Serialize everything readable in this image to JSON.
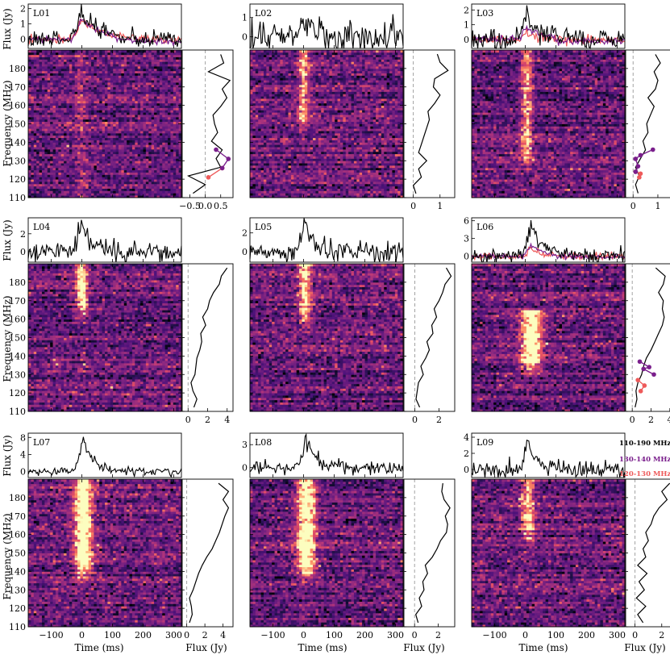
{
  "figure": {
    "y_label_flux": "Flux (Jy)",
    "y_label_freq": "Frequency (MHz)",
    "x_label_time": "Time (ms)",
    "x_label_spec": "Flux (Jy)"
  },
  "legend": [
    {
      "label": "110-190 MHz",
      "color": "#000000"
    },
    {
      "label": "130-140 MHz",
      "color": "#7a1f8c"
    },
    {
      "label": "120-130 MHz",
      "color": "#ee5a5a"
    }
  ],
  "colors": {
    "band_a": "#7a1f8c",
    "band_b": "#ee5a5a",
    "full": "#000000"
  },
  "chart_data": [
    {
      "label": "L01",
      "type": "line",
      "flux_ticks": [
        0,
        1,
        2
      ],
      "flux_ylim": [
        -0.6,
        2.3
      ],
      "spec_xticks": [
        -0.5,
        0.0,
        0.5
      ],
      "spec_xticklabels": [
        "−0.5",
        "0.0",
        "0.5"
      ],
      "spec_xlim": [
        -0.75,
        0.9
      ],
      "spec_values": [
        -0.4,
        0.0,
        -0.55,
        0.5,
        0.35,
        0.55,
        0.2,
        0.4,
        0.3,
        0.25,
        0.5,
        0.7,
        0.55,
        0.8,
        0.1,
        0.6,
        0.5
      ],
      "spec_a": [
        [
          0.35,
          136
        ],
        [
          0.75,
          131
        ],
        [
          0.55,
          126
        ]
      ],
      "spec_b": [
        [
          0.55,
          126
        ],
        [
          0.1,
          121
        ]
      ],
      "burst_strength": 0.18,
      "burst_center": 0,
      "burst_width": 20,
      "burst_fmin": 110,
      "burst_fmax": 190,
      "peak": 1.8,
      "noise": 0.28,
      "decay": 60,
      "series_a_scale": 0.75,
      "series_b_scale": 0.7,
      "has_bands": true,
      "seed": 11
    },
    {
      "label": "L02",
      "type": "line",
      "flux_ticks": [
        0,
        1
      ],
      "flux_ylim": [
        -0.6,
        1.7
      ],
      "spec_xticks": [
        0,
        1
      ],
      "spec_xticklabels": [
        "0",
        "1"
      ],
      "spec_xlim": [
        -0.35,
        1.55
      ],
      "spec_values": [
        0.1,
        0.0,
        0.3,
        0.2,
        0.5,
        0.2,
        0.3,
        0.4,
        0.5,
        0.6,
        0.55,
        0.8,
        1.0,
        0.75,
        0.8,
        1.3,
        1.0,
        0.9
      ],
      "burst_strength": 0.5,
      "burst_center": 0,
      "burst_width": 18,
      "burst_fmin": 150,
      "burst_fmax": 190,
      "peak": 0.8,
      "noise": 0.35,
      "decay": 40,
      "has_bands": false,
      "seed": 22
    },
    {
      "label": "L03",
      "type": "line",
      "flux_ticks": [
        0,
        1,
        2
      ],
      "flux_ylim": [
        -0.6,
        2.4
      ],
      "spec_xticks": [
        0,
        1
      ],
      "spec_xticklabels": [
        "0",
        "1"
      ],
      "spec_xlim": [
        -0.3,
        1.75
      ],
      "spec_values": [
        0.2,
        0.1,
        0.25,
        0.1,
        0.3,
        0.5,
        0.4,
        0.6,
        0.55,
        0.7,
        0.85,
        0.6,
        0.9,
        1.0,
        0.85,
        1.1,
        0.9
      ],
      "spec_a": [
        [
          0.8,
          136
        ],
        [
          0.3,
          133
        ],
        [
          0.1,
          131
        ],
        [
          0.2,
          127
        ],
        [
          0.1,
          124
        ]
      ],
      "spec_b": [
        [
          0.1,
          124
        ],
        [
          0.3,
          123
        ],
        [
          0.25,
          121
        ]
      ],
      "burst_strength": 0.55,
      "burst_center": 5,
      "burst_width": 18,
      "burst_fmin": 130,
      "burst_fmax": 190,
      "peak": 1.4,
      "noise": 0.35,
      "decay": 50,
      "series_a_scale": 0.6,
      "series_b_scale": 0.35,
      "has_bands": true,
      "seed": 33
    },
    {
      "label": "L04",
      "type": "line",
      "flux_ticks": [
        0,
        2
      ],
      "flux_ylim": [
        -1.2,
        3.8
      ],
      "spec_xticks": [
        0,
        2,
        4
      ],
      "spec_xticklabels": [
        "0",
        "2",
        "4"
      ],
      "spec_xlim": [
        -0.6,
        4.6
      ],
      "spec_values": [
        0.6,
        0.9,
        0.5,
        0.3,
        0.7,
        0.8,
        0.9,
        1.2,
        1.4,
        1.3,
        1.8,
        1.5,
        2.0,
        2.2,
        2.6,
        3.2,
        3.4,
        4.0
      ],
      "burst_strength": 0.75,
      "burst_center": 0,
      "burst_width": 18,
      "burst_fmin": 165,
      "burst_fmax": 190,
      "peak": 3.0,
      "noise": 0.55,
      "decay": 30,
      "has_bands": false,
      "seed": 44
    },
    {
      "label": "L05",
      "type": "line",
      "flux_ticks": [
        0,
        2
      ],
      "flux_ylim": [
        -1.1,
        3.6
      ],
      "spec_xticks": [
        0,
        2
      ],
      "spec_xticklabels": [
        "0",
        "2"
      ],
      "spec_xlim": [
        -0.9,
        3.3
      ],
      "spec_values": [
        0.4,
        0.1,
        0.2,
        0.3,
        0.7,
        0.5,
        0.9,
        1.2,
        1.0,
        1.5,
        1.4,
        1.8,
        1.6,
        2.0,
        2.3,
        2.5,
        3.0,
        2.6
      ],
      "burst_strength": 0.6,
      "burst_center": 5,
      "burst_width": 20,
      "burst_fmin": 160,
      "burst_fmax": 190,
      "peak": 2.8,
      "noise": 0.55,
      "decay": 30,
      "has_bands": false,
      "seed": 55
    },
    {
      "label": "L06",
      "type": "line",
      "flux_ticks": [
        0,
        3,
        6
      ],
      "flux_ylim": [
        -1.0,
        6.5
      ],
      "spec_xticks": [
        0,
        2,
        4
      ],
      "spec_xticklabels": [
        "0",
        "2",
        "4"
      ],
      "spec_xlim": [
        -0.7,
        4.7
      ],
      "spec_values": [
        0.3,
        0.5,
        0.4,
        0.6,
        1.0,
        1.2,
        1.5,
        2.0,
        2.4,
        2.8,
        3.2,
        3.4,
        3.2,
        3.3,
        2.8,
        3.3,
        3.5,
        2.5
      ],
      "spec_a": [
        [
          0.8,
          137
        ],
        [
          1.8,
          134
        ],
        [
          1.2,
          133
        ],
        [
          2.3,
          130
        ]
      ],
      "spec_b": [
        [
          0.6,
          127
        ],
        [
          1.3,
          124
        ],
        [
          0.9,
          121
        ]
      ],
      "burst_strength": 0.85,
      "burst_center": 20,
      "burst_width": 35,
      "burst_fmin": 135,
      "burst_fmax": 165,
      "peak": 4.8,
      "noise": 0.6,
      "decay": 40,
      "series_a_scale": 0.4,
      "series_b_scale": 0.25,
      "has_bands": true,
      "seed": 66
    },
    {
      "label": "L07",
      "type": "line",
      "flux_ticks": [
        0,
        4,
        8
      ],
      "flux_ylim": [
        -1.4,
        9.0
      ],
      "spec_xticks": [
        0,
        2,
        4
      ],
      "spec_xticklabels": [
        "0",
        "2",
        "4"
      ],
      "spec_xlim": [
        -0.5,
        5.1
      ],
      "spec_values": [
        0.3,
        0.6,
        0.5,
        0.3,
        0.7,
        1.0,
        1.3,
        1.7,
        2.2,
        2.8,
        3.2,
        3.6,
        3.9,
        4.2,
        4.6,
        4.0,
        4.6,
        3.5
      ],
      "burst_strength": 0.9,
      "burst_center": 5,
      "burst_width": 28,
      "burst_fmin": 140,
      "burst_fmax": 190,
      "peak": 7.0,
      "noise": 0.55,
      "decay": 35,
      "has_bands": false,
      "seed": 77
    },
    {
      "label": "L08",
      "type": "line",
      "flux_ticks": [
        0,
        3
      ],
      "flux_ylim": [
        -1.3,
        4.5
      ],
      "spec_xticks": [
        0,
        2
      ],
      "spec_xticklabels": [
        "0",
        "2"
      ],
      "spec_xlim": [
        -0.9,
        3.4
      ],
      "spec_values": [
        0.3,
        0.1,
        0.6,
        0.4,
        0.8,
        0.7,
        1.1,
        0.9,
        1.5,
        1.9,
        2.2,
        2.7,
        2.8,
        2.6,
        3.0,
        2.5,
        2.3,
        2.4
      ],
      "burst_strength": 0.85,
      "burst_center": 10,
      "burst_width": 30,
      "burst_fmin": 140,
      "burst_fmax": 190,
      "peak": 3.6,
      "noise": 0.5,
      "decay": 35,
      "has_bands": false,
      "seed": 88
    },
    {
      "label": "L09",
      "type": "line",
      "flux_ticks": [
        0,
        2,
        4
      ],
      "flux_ylim": [
        -1.0,
        4.5
      ],
      "spec_xticks": [
        0,
        2
      ],
      "spec_xticklabels": [
        "0",
        "2"
      ],
      "spec_xlim": [
        -0.7,
        3.1
      ],
      "spec_values": [
        0.6,
        0.2,
        0.8,
        0.1,
        0.7,
        0.3,
        0.9,
        0.2,
        0.8,
        0.6,
        1.0,
        0.8,
        1.2,
        1.4,
        1.8,
        2.4,
        2.0,
        2.6
      ],
      "burst_strength": 0.6,
      "burst_center": 10,
      "burst_width": 22,
      "burst_fmin": 160,
      "burst_fmax": 190,
      "peak": 3.4,
      "noise": 0.5,
      "decay": 30,
      "has_bands": false,
      "seed": 99
    }
  ],
  "axes": {
    "time_ticks": [
      -100,
      0,
      100,
      200,
      300
    ],
    "time_xlim": [
      -175,
      325
    ],
    "freq_ticks": [
      110,
      120,
      130,
      140,
      150,
      160,
      170,
      180
    ],
    "freq_ylim": [
      110,
      190
    ]
  }
}
